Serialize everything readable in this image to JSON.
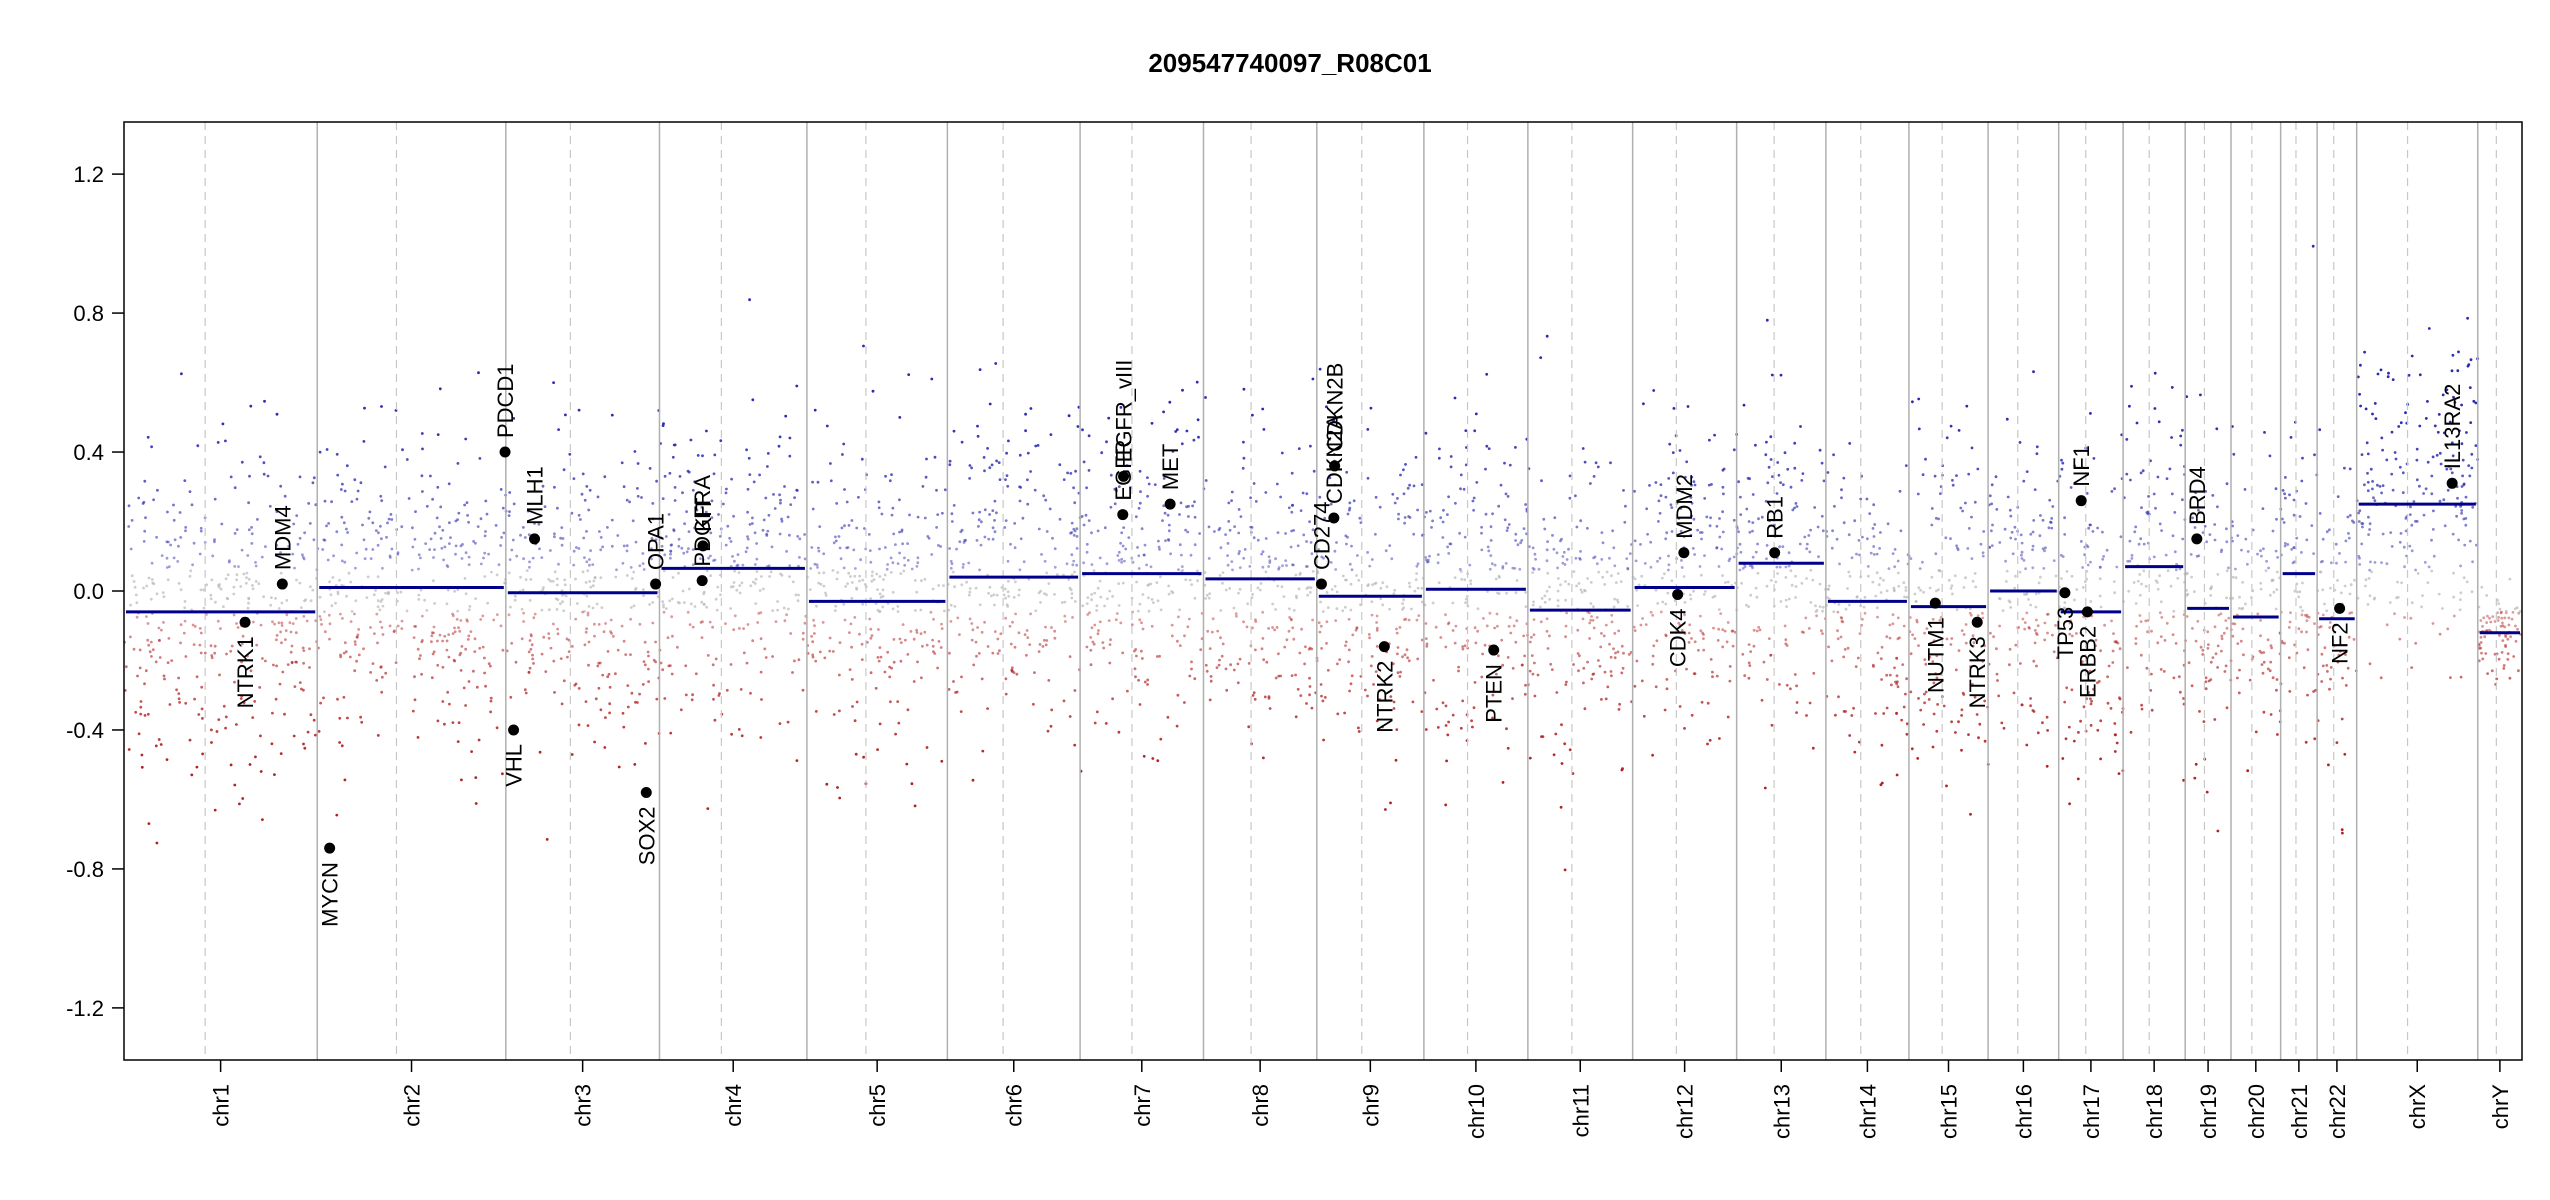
{
  "chart_data": {
    "type": "scatter",
    "title": "209547740097_R08C01",
    "xlabel": "",
    "ylabel": "",
    "ylim": [
      -1.35,
      1.35
    ],
    "y_ticks": [
      "1.2",
      "0.8",
      "0.4",
      "0.0",
      "-0.4",
      "-0.8",
      "-1.2"
    ],
    "y_tick_values": [
      1.2,
      0.8,
      0.4,
      0.0,
      -0.4,
      -0.8,
      -1.2
    ],
    "grid": false,
    "point_colors": {
      "gain": "#2b2bb0",
      "loss": "#b22222",
      "neutral": "#b8b8b8"
    },
    "segment_color": "#00008b",
    "chromosomes": [
      {
        "name": "chr1",
        "start": 0,
        "end": 249,
        "segment_value": -0.06
      },
      {
        "name": "chr2",
        "start": 249,
        "end": 492,
        "segment_value": 0.01
      },
      {
        "name": "chr3",
        "start": 492,
        "end": 690,
        "segment_value": -0.005
      },
      {
        "name": "chr4",
        "start": 690,
        "end": 880,
        "segment_value": 0.065
      },
      {
        "name": "chr5",
        "start": 880,
        "end": 1061,
        "segment_value": -0.03
      },
      {
        "name": "chr6",
        "start": 1061,
        "end": 1232,
        "segment_value": 0.04
      },
      {
        "name": "chr7",
        "start": 1232,
        "end": 1391,
        "segment_value": 0.05
      },
      {
        "name": "chr8",
        "start": 1391,
        "end": 1537,
        "segment_value": 0.035
      },
      {
        "name": "chr9",
        "start": 1537,
        "end": 1675,
        "segment_value": -0.015
      },
      {
        "name": "chr10",
        "start": 1675,
        "end": 1809,
        "segment_value": 0.005
      },
      {
        "name": "chr11",
        "start": 1809,
        "end": 1944,
        "segment_value": -0.055
      },
      {
        "name": "chr12",
        "start": 1944,
        "end": 2078,
        "segment_value": 0.01
      },
      {
        "name": "chr13",
        "start": 2078,
        "end": 2193,
        "segment_value": 0.08
      },
      {
        "name": "chr14",
        "start": 2193,
        "end": 2300,
        "segment_value": -0.03
      },
      {
        "name": "chr15",
        "start": 2300,
        "end": 2402,
        "segment_value": -0.045
      },
      {
        "name": "chr16",
        "start": 2402,
        "end": 2493,
        "segment_value": 0.0
      },
      {
        "name": "chr17",
        "start": 2493,
        "end": 2576,
        "segment_value": -0.06
      },
      {
        "name": "chr18",
        "start": 2576,
        "end": 2656,
        "segment_value": 0.07
      },
      {
        "name": "chr19",
        "start": 2656,
        "end": 2715,
        "segment_value": -0.05
      },
      {
        "name": "chr20",
        "start": 2715,
        "end": 2779,
        "segment_value": -0.075
      },
      {
        "name": "chr21",
        "start": 2779,
        "end": 2826,
        "segment_value": 0.05
      },
      {
        "name": "chr22",
        "start": 2826,
        "end": 2877,
        "segment_value": -0.08
      },
      {
        "name": "chrX",
        "start": 2877,
        "end": 3033,
        "segment_value": 0.25
      },
      {
        "name": "chrY",
        "start": 3033,
        "end": 3090,
        "segment_value": -0.12
      }
    ],
    "genes": [
      {
        "name": "NTRK1",
        "pos": 156,
        "value": -0.09,
        "label_side": "below"
      },
      {
        "name": "MDM4",
        "pos": 204,
        "value": 0.02,
        "label_side": "above"
      },
      {
        "name": "MYCN",
        "pos": 265,
        "value": -0.74,
        "label_side": "below"
      },
      {
        "name": "PDCD1",
        "pos": 491,
        "value": 0.4,
        "label_side": "above"
      },
      {
        "name": "VHL",
        "pos": 502,
        "value": -0.4,
        "label_side": "below"
      },
      {
        "name": "MLH1",
        "pos": 529,
        "value": 0.15,
        "label_side": "above"
      },
      {
        "name": "SOX2",
        "pos": 673,
        "value": -0.58,
        "label_side": "below"
      },
      {
        "name": "OPA1",
        "pos": 685,
        "value": 0.02,
        "label_side": "above"
      },
      {
        "name": "PDGFRA",
        "pos": 745,
        "value": 0.03,
        "label_side": "above"
      },
      {
        "name": "KIT",
        "pos": 746,
        "value": 0.13,
        "label_side": "above"
      },
      {
        "name": "EGFR",
        "pos": 1287,
        "value": 0.22,
        "label_side": "above"
      },
      {
        "name": "EGFR_vIII",
        "pos": 1288,
        "value": 0.33,
        "label_side": "above"
      },
      {
        "name": "MET",
        "pos": 1348,
        "value": 0.25,
        "label_side": "above"
      },
      {
        "name": "CD274",
        "pos": 1543,
        "value": 0.02,
        "label_side": "above"
      },
      {
        "name": "CDKN2A",
        "pos": 1559,
        "value": 0.21,
        "label_side": "above"
      },
      {
        "name": "CDKN2B",
        "pos": 1560,
        "value": 0.36,
        "label_side": "above"
      },
      {
        "name": "NTRK2",
        "pos": 1624,
        "value": -0.16,
        "label_side": "below"
      },
      {
        "name": "PTEN",
        "pos": 1765,
        "value": -0.17,
        "label_side": "below"
      },
      {
        "name": "CDK4",
        "pos": 2002,
        "value": -0.01,
        "label_side": "below"
      },
      {
        "name": "MDM2",
        "pos": 2010,
        "value": 0.11,
        "label_side": "above"
      },
      {
        "name": "RB1",
        "pos": 2127,
        "value": 0.11,
        "label_side": "above"
      },
      {
        "name": "NUTM1",
        "pos": 2334,
        "value": -0.035,
        "label_side": "below"
      },
      {
        "name": "NTRK3",
        "pos": 2388,
        "value": -0.09,
        "label_side": "below"
      },
      {
        "name": "TP53",
        "pos": 2501,
        "value": -0.005,
        "label_side": "below"
      },
      {
        "name": "NF1",
        "pos": 2522,
        "value": 0.26,
        "label_side": "above"
      },
      {
        "name": "ERBB2",
        "pos": 2530,
        "value": -0.06,
        "label_side": "below"
      },
      {
        "name": "BRD4",
        "pos": 2671,
        "value": 0.15,
        "label_side": "above"
      },
      {
        "name": "NF2",
        "pos": 2855,
        "value": -0.05,
        "label_side": "below"
      },
      {
        "name": "IL13RA2",
        "pos": 3000,
        "value": 0.31,
        "label_side": "above"
      }
    ]
  }
}
